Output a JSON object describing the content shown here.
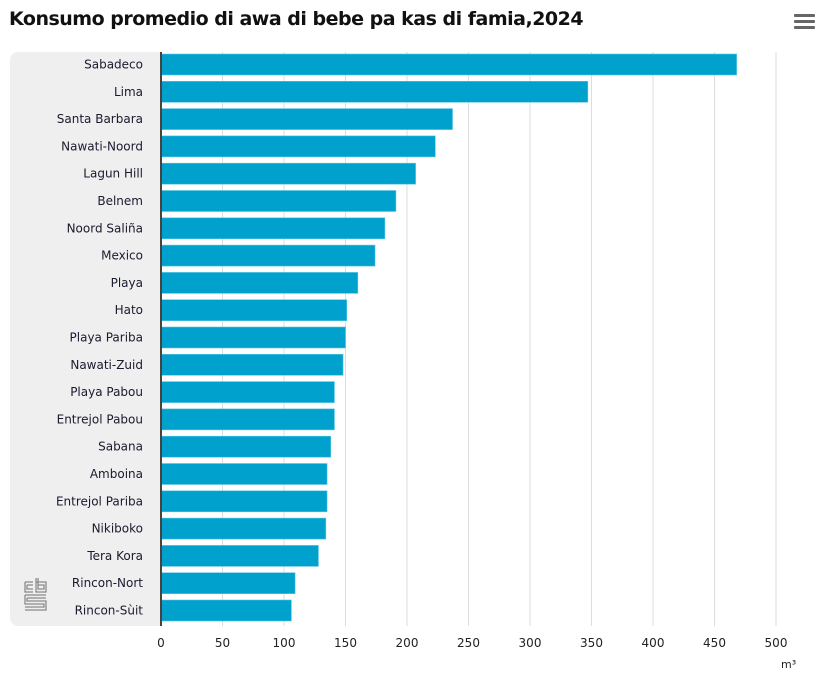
{
  "header": {
    "title": "Konsumo promedio di awa di bebe pa kas di famia,2024",
    "menu_icon": "hamburger-icon"
  },
  "logo": {
    "text": "cbs"
  },
  "colors": {
    "bar": "#00a1cd",
    "panel": "#efefef",
    "grid": "#dddddd",
    "axis": "#444444"
  },
  "chart_data": {
    "type": "bar",
    "orientation": "horizontal",
    "title": "Konsumo promedio di awa di bebe pa kas di famia,2024",
    "xlabel": "m³",
    "ylabel": "",
    "xlim": [
      0,
      500
    ],
    "grid": true,
    "categories": [
      "Sabadeco",
      "Lima",
      "Santa Barbara",
      "Nawati-Noord",
      "Lagun Hill",
      "Belnem",
      "Noord Saliña",
      "Mexico",
      "Playa",
      "Hato",
      "Playa Pariba",
      "Nawati-Zuid",
      "Playa Pabou",
      "Entrejol Pabou",
      "Sabana",
      "Amboina",
      "Entrejol Pariba",
      "Nikiboko",
      "Tera Kora",
      "Rincon-Nort",
      "Rincon-Sùit"
    ],
    "values": [
      468,
      347,
      237,
      223,
      207,
      191,
      182,
      174,
      160,
      151,
      150,
      148,
      141,
      141,
      138,
      135,
      135,
      134,
      128,
      109,
      106
    ],
    "ticks": [
      "0",
      "50",
      "100",
      "150",
      "200",
      "250",
      "300",
      "350",
      "400",
      "450",
      "500"
    ]
  }
}
